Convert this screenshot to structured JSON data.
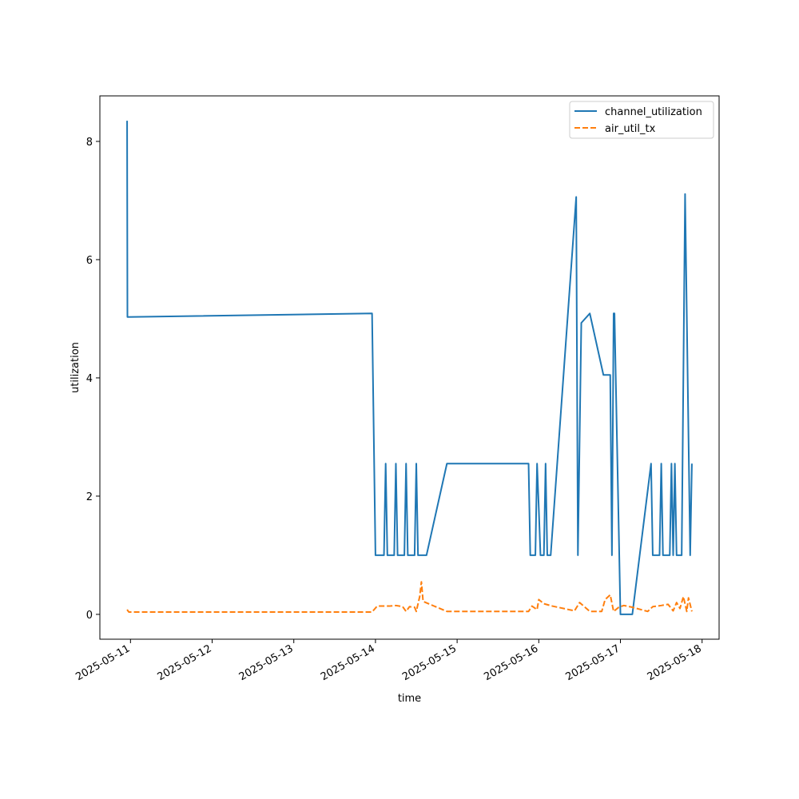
{
  "chart_data": {
    "type": "line",
    "title": "",
    "xlabel": "time",
    "ylabel": "utilization",
    "x_ticks": [
      "2025-05-11",
      "2025-05-12",
      "2025-05-13",
      "2025-05-14",
      "2025-05-15",
      "2025-05-16",
      "2025-05-17",
      "2025-05-18"
    ],
    "y_ticks": [
      0,
      2,
      4,
      6,
      8
    ],
    "xlim": [
      "2025-05-10 15:00",
      "2025-05-18 05:00"
    ],
    "ylim": [
      -0.42,
      8.77
    ],
    "legend_position": "upper right",
    "grid": false,
    "series": [
      {
        "name": "channel_utilization",
        "color": "#1f77b4",
        "style": "solid",
        "points": [
          [
            "2025-05-10 23:00",
            8.35
          ],
          [
            "2025-05-10 23:06",
            5.03
          ],
          [
            "2025-05-13 23:00",
            5.09
          ],
          [
            "2025-05-14 00:00",
            1.0
          ],
          [
            "2025-05-14 02:30",
            1.0
          ],
          [
            "2025-05-14 03:00",
            2.55
          ],
          [
            "2025-05-14 03:30",
            1.0
          ],
          [
            "2025-05-14 05:30",
            1.0
          ],
          [
            "2025-05-14 06:00",
            2.55
          ],
          [
            "2025-05-14 06:30",
            1.0
          ],
          [
            "2025-05-14 08:30",
            1.0
          ],
          [
            "2025-05-14 09:00",
            2.55
          ],
          [
            "2025-05-14 09:30",
            1.0
          ],
          [
            "2025-05-14 11:30",
            1.0
          ],
          [
            "2025-05-14 12:00",
            2.55
          ],
          [
            "2025-05-14 12:30",
            1.0
          ],
          [
            "2025-05-14 15:00",
            1.0
          ],
          [
            "2025-05-14 21:00",
            2.55
          ],
          [
            "2025-05-15 21:00",
            2.55
          ],
          [
            "2025-05-15 21:30",
            1.0
          ],
          [
            "2025-05-15 23:00",
            1.0
          ],
          [
            "2025-05-15 23:30",
            2.55
          ],
          [
            "2025-05-16 00:00",
            1.8
          ],
          [
            "2025-05-16 00:30",
            1.0
          ],
          [
            "2025-05-16 01:30",
            1.0
          ],
          [
            "2025-05-16 02:00",
            2.55
          ],
          [
            "2025-05-16 02:30",
            1.0
          ],
          [
            "2025-05-16 03:30",
            1.0
          ],
          [
            "2025-05-16 11:00",
            7.06
          ],
          [
            "2025-05-16 11:30",
            1.0
          ],
          [
            "2025-05-16 12:30",
            4.93
          ],
          [
            "2025-05-16 15:00",
            5.09
          ],
          [
            "2025-05-16 19:00",
            4.05
          ],
          [
            "2025-05-16 21:00",
            4.05
          ],
          [
            "2025-05-16 21:30",
            1.0
          ],
          [
            "2025-05-16 22:00",
            5.09
          ],
          [
            "2025-05-16 22:15",
            5.09
          ],
          [
            "2025-05-17 00:00",
            0.0
          ],
          [
            "2025-05-17 03:30",
            0.0
          ],
          [
            "2025-05-17 09:00",
            2.55
          ],
          [
            "2025-05-17 09:30",
            1.0
          ],
          [
            "2025-05-17 11:30",
            1.0
          ],
          [
            "2025-05-17 12:00",
            2.55
          ],
          [
            "2025-05-17 12:30",
            1.0
          ],
          [
            "2025-05-17 14:30",
            1.0
          ],
          [
            "2025-05-17 15:00",
            2.55
          ],
          [
            "2025-05-17 15:30",
            1.0
          ],
          [
            "2025-05-17 16:00",
            2.55
          ],
          [
            "2025-05-17 16:30",
            1.0
          ],
          [
            "2025-05-17 18:00",
            1.0
          ],
          [
            "2025-05-17 19:00",
            7.11
          ],
          [
            "2025-05-17 20:30",
            1.0
          ],
          [
            "2025-05-17 21:00",
            2.55
          ]
        ]
      },
      {
        "name": "air_util_tx",
        "color": "#ff7f0e",
        "style": "dashed",
        "points": [
          [
            "2025-05-10 23:00",
            0.08
          ],
          [
            "2025-05-10 23:30",
            0.04
          ],
          [
            "2025-05-13 23:00",
            0.04
          ],
          [
            "2025-05-14 00:30",
            0.14
          ],
          [
            "2025-05-14 04:00",
            0.14
          ],
          [
            "2025-05-14 06:00",
            0.15
          ],
          [
            "2025-05-14 08:00",
            0.13
          ],
          [
            "2025-05-14 09:00",
            0.05
          ],
          [
            "2025-05-14 10:00",
            0.13
          ],
          [
            "2025-05-14 11:30",
            0.12
          ],
          [
            "2025-05-14 12:00",
            0.05
          ],
          [
            "2025-05-14 13:00",
            0.3
          ],
          [
            "2025-05-14 13:30",
            0.55
          ],
          [
            "2025-05-14 14:00",
            0.22
          ],
          [
            "2025-05-14 16:00",
            0.17
          ],
          [
            "2025-05-14 21:00",
            0.05
          ],
          [
            "2025-05-15 21:00",
            0.05
          ],
          [
            "2025-05-15 22:00",
            0.14
          ],
          [
            "2025-05-15 23:30",
            0.08
          ],
          [
            "2025-05-16 00:00",
            0.25
          ],
          [
            "2025-05-16 01:30",
            0.18
          ],
          [
            "2025-05-16 04:00",
            0.14
          ],
          [
            "2025-05-16 10:30",
            0.06
          ],
          [
            "2025-05-16 12:00",
            0.2
          ],
          [
            "2025-05-16 15:00",
            0.05
          ],
          [
            "2025-05-16 18:30",
            0.05
          ],
          [
            "2025-05-16 19:30",
            0.25
          ],
          [
            "2025-05-16 21:00",
            0.33
          ],
          [
            "2025-05-16 22:00",
            0.05
          ],
          [
            "2025-05-16 23:30",
            0.12
          ],
          [
            "2025-05-17 01:00",
            0.15
          ],
          [
            "2025-05-17 03:30",
            0.12
          ],
          [
            "2025-05-17 08:00",
            0.05
          ],
          [
            "2025-05-17 09:30",
            0.13
          ],
          [
            "2025-05-17 12:00",
            0.15
          ],
          [
            "2025-05-17 14:00",
            0.17
          ],
          [
            "2025-05-17 15:30",
            0.06
          ],
          [
            "2025-05-17 16:30",
            0.2
          ],
          [
            "2025-05-17 17:30",
            0.1
          ],
          [
            "2025-05-17 18:30",
            0.3
          ],
          [
            "2025-05-17 19:30",
            0.05
          ],
          [
            "2025-05-17 20:00",
            0.28
          ],
          [
            "2025-05-17 21:00",
            0.05
          ]
        ]
      }
    ]
  }
}
